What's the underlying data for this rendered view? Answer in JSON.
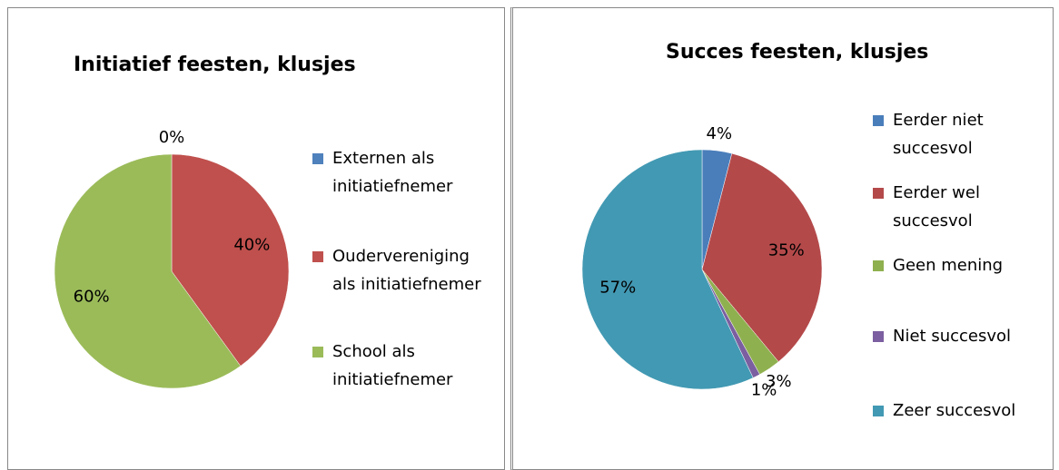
{
  "chart_data": [
    {
      "type": "pie",
      "title": "Initiatief feesten, klusjes",
      "categories": [
        "Externen als initiatiefnemer",
        "Oudervereniging als initiatiefnemer",
        "School als initiatiefnemer"
      ],
      "values": [
        0,
        40,
        60
      ],
      "value_labels": [
        "0%",
        "40%",
        "60%"
      ],
      "colors": [
        "#4f81bd",
        "#c0504d",
        "#9bbb59"
      ]
    },
    {
      "type": "pie",
      "title": "Succes feesten, klusjes",
      "categories": [
        "Eerder niet succesvol",
        "Eerder wel succesvol",
        "Geen mening",
        "Niet succesvol",
        "Zeer succesvol"
      ],
      "values": [
        4,
        35,
        3,
        1,
        57
      ],
      "value_labels": [
        "4%",
        "35%",
        "3%",
        "1%",
        "57%"
      ],
      "colors": [
        "#4a7ebb",
        "#b4494a",
        "#8fb04f",
        "#7b5fa0",
        "#4299b3"
      ]
    }
  ]
}
